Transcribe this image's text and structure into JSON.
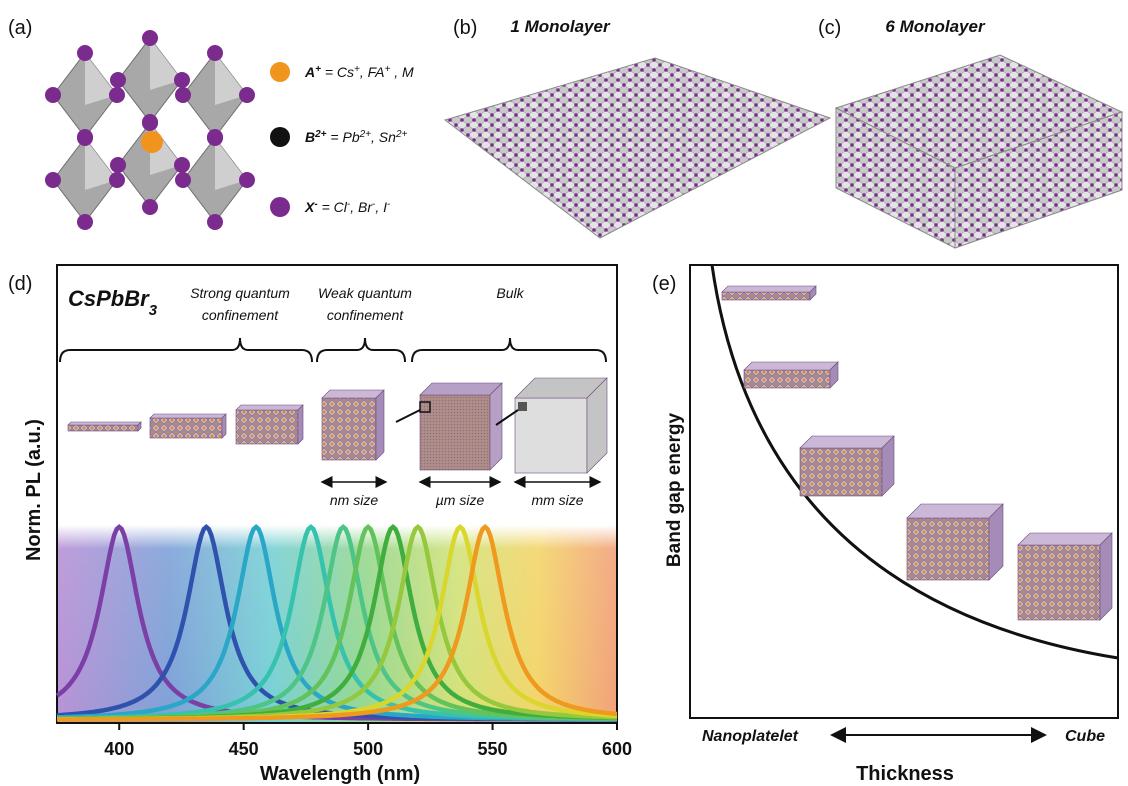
{
  "panel_a": {
    "label": "(a)",
    "legend": [
      {
        "parts": [
          "A",
          "+",
          " = Cs",
          "+",
          ", FA",
          "+",
          " , M"
        ]
      },
      {
        "parts": [
          "B",
          "2+",
          " = Pb",
          "2+",
          ", Sn",
          "2+"
        ]
      },
      {
        "parts": [
          "X",
          "-",
          " = Cl",
          "-",
          ", Br",
          "-",
          ", I",
          "-"
        ]
      }
    ]
  },
  "panel_b": {
    "label": "(b)",
    "title": "1 Monolayer"
  },
  "panel_c": {
    "label": "(c)",
    "title": "6 Monolayer"
  },
  "chart_data": {
    "type": "line",
    "label": "(d)",
    "title_parts": [
      "CsPbBr",
      "3"
    ],
    "regions": [
      {
        "lines": [
          "Strong quantum",
          "confinement"
        ]
      },
      {
        "lines": [
          "Weak quantum",
          "confinement"
        ]
      },
      {
        "lines": [
          "Bulk"
        ]
      }
    ],
    "sizes": [
      "nm size",
      "µm size",
      "mm size"
    ],
    "x_label": "Wavelength (nm)",
    "y_label": "Norm. PL (a.u.)",
    "xlim": [
      375,
      600
    ],
    "xticks": [
      400,
      450,
      500,
      550,
      600
    ],
    "peaks": [
      400,
      435,
      455,
      477,
      490,
      500,
      510,
      520,
      537,
      547
    ],
    "colors": [
      "#7b3fa6",
      "#2f52ad",
      "#2aa7c6",
      "#36c2ad",
      "#4fc487",
      "#63c25a",
      "#3fae3e",
      "#96c83e",
      "#d9d62e",
      "#ef9a1e"
    ]
  },
  "panel_e": {
    "label": "(e)",
    "y_label": "Band gap energy",
    "x_label": "Thickness",
    "left": "Nanoplatelet",
    "right": "Cube"
  }
}
